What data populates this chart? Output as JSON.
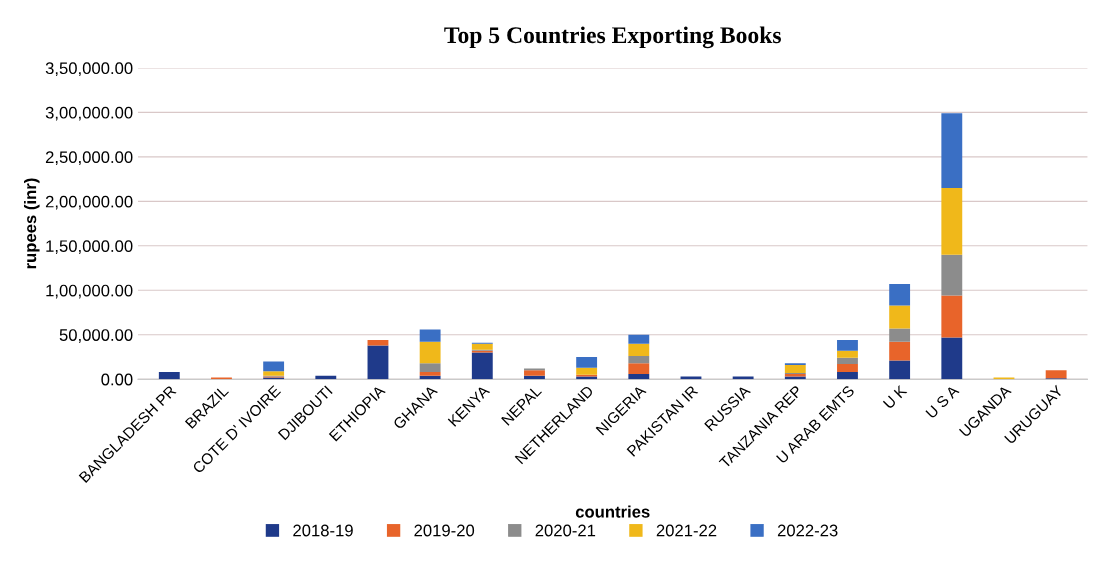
{
  "chart_data": {
    "type": "bar",
    "stacked": true,
    "title": "Top 5 Countries Exporting Books",
    "xlabel": "countries",
    "ylabel": "rupees (inr)",
    "categories": [
      "BANGLADESH PR",
      "BRAZIL",
      "COTE D' IVOIRE",
      "DJIBOUTI",
      "ETHIOPIA",
      "GHANA",
      "KENYA",
      "NEPAL",
      "NETHERLAND",
      "NIGERIA",
      "PAKISTAN IR",
      "RUSSIA",
      "TANZANIA REP",
      "U ARAB EMTS",
      "U K",
      "U S A",
      "UGANDA",
      "URUGUAY"
    ],
    "series": [
      {
        "name": "2018-19",
        "color": "#1f3a8a",
        "values": [
          8000,
          null,
          2000,
          4000,
          38000,
          4000,
          30000,
          4000,
          3000,
          6000,
          3000,
          3000,
          3000,
          8000,
          21000,
          47000,
          null,
          1000
        ]
      },
      {
        "name": "2019-20",
        "color": "#e8642a",
        "values": [
          null,
          2000,
          1000,
          null,
          6000,
          4000,
          2000,
          6000,
          2000,
          12000,
          null,
          null,
          3000,
          9000,
          21000,
          47000,
          null,
          9000
        ]
      },
      {
        "name": "2020-21",
        "color": "#8c8c8c",
        "values": [
          null,
          null,
          1000,
          null,
          null,
          10000,
          1000,
          2000,
          null,
          8000,
          null,
          null,
          1000,
          7000,
          15000,
          46000,
          null,
          null
        ]
      },
      {
        "name": "2021-22",
        "color": "#f0b81a",
        "values": [
          null,
          null,
          5000,
          null,
          null,
          24000,
          7000,
          null,
          8000,
          14000,
          null,
          null,
          9000,
          8000,
          26000,
          75000,
          2000,
          null
        ]
      },
      {
        "name": "2022-23",
        "color": "#3a6fc4",
        "values": [
          null,
          null,
          11000,
          null,
          null,
          14000,
          1000,
          null,
          12000,
          10000,
          null,
          null,
          2000,
          12000,
          24000,
          84000,
          null,
          null
        ]
      }
    ],
    "ylim": [
      0,
      350000
    ],
    "yticks": [
      {
        "value": 0,
        "label": "0.00"
      },
      {
        "value": 50000,
        "label": "50,000.00"
      },
      {
        "value": 100000,
        "label": "1,00,000.00"
      },
      {
        "value": 150000,
        "label": "1,50,000.00"
      },
      {
        "value": 200000,
        "label": "2,00,000.00"
      },
      {
        "value": 250000,
        "label": "2,50,000.00"
      },
      {
        "value": 300000,
        "label": "3,00,000.00"
      },
      {
        "value": 350000,
        "label": "3,50,000.00"
      }
    ],
    "grid": "y",
    "legend": "bottom"
  }
}
